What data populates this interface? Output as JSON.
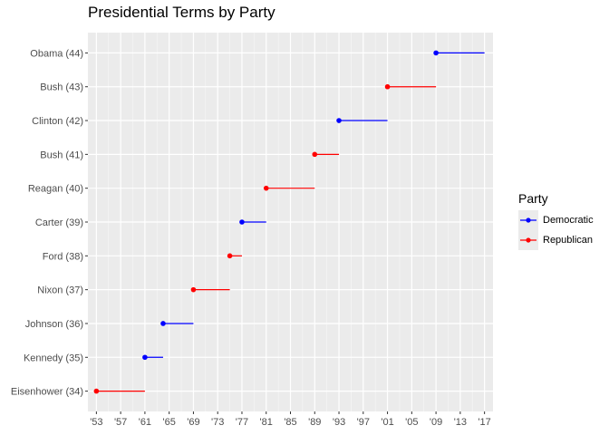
{
  "chart_data": {
    "type": "dumbbell",
    "title": "Presidential Terms by Party",
    "xlabel": "",
    "ylabel": "",
    "xlim": [
      1951.6,
      2018.4
    ],
    "x_ticks": [
      1953,
      1957,
      1961,
      1965,
      1969,
      1973,
      1977,
      1981,
      1985,
      1989,
      1993,
      1997,
      2001,
      2005,
      2009,
      2013,
      2017
    ],
    "x_tick_labels": [
      "'53",
      "'57",
      "'61",
      "'65",
      "'69",
      "'73",
      "'77",
      "'81",
      "'85",
      "'89",
      "'93",
      "'97",
      "'01",
      "'05",
      "'09",
      "'13",
      "'17"
    ],
    "grid": true,
    "legend": {
      "title": "Party",
      "position": "right",
      "entries": [
        {
          "name": "Democratic",
          "color": "#0000ff"
        },
        {
          "name": "Republican",
          "color": "#ff0000"
        }
      ]
    },
    "series": [
      {
        "label": "Eisenhower (34)",
        "start": 1953,
        "end": 1961,
        "party": "Republican"
      },
      {
        "label": "Kennedy (35)",
        "start": 1961,
        "end": 1964,
        "party": "Democratic"
      },
      {
        "label": "Johnson (36)",
        "start": 1964,
        "end": 1969,
        "party": "Democratic"
      },
      {
        "label": "Nixon (37)",
        "start": 1969,
        "end": 1975,
        "party": "Republican"
      },
      {
        "label": "Ford (38)",
        "start": 1975,
        "end": 1977,
        "party": "Republican"
      },
      {
        "label": "Carter (39)",
        "start": 1977,
        "end": 1981,
        "party": "Democratic"
      },
      {
        "label": "Reagan (40)",
        "start": 1981,
        "end": 1989,
        "party": "Republican"
      },
      {
        "label": "Bush (41)",
        "start": 1989,
        "end": 1993,
        "party": "Republican"
      },
      {
        "label": "Clinton (42)",
        "start": 1993,
        "end": 2001,
        "party": "Democratic"
      },
      {
        "label": "Bush (43)",
        "start": 2001,
        "end": 2009,
        "party": "Republican"
      },
      {
        "label": "Obama (44)",
        "start": 2009,
        "end": 2017,
        "party": "Democratic"
      }
    ]
  }
}
